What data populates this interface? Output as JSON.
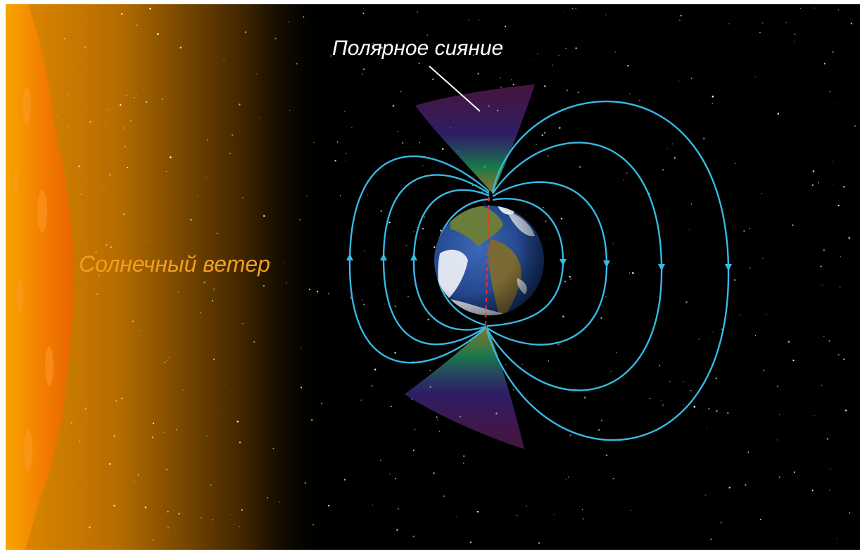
{
  "labels": {
    "aurora": "Полярное сияние",
    "solar_wind": "Солнечный ветер"
  },
  "colors": {
    "space": "#000000",
    "sun_core": "#f06a00",
    "sun_glow": "#d28200",
    "field_line": "#38b9e6",
    "solar_wind_text": "#f0a020",
    "aurora_text": "#ffffff",
    "ocean": "#1c3f8a",
    "land": "#6a7d3a",
    "axis": "#ff2a2a"
  },
  "icons": {
    "sun": "sun-edge-icon",
    "earth": "earth-globe-icon",
    "field": "magnetic-field-lines",
    "aurora": "aurora-cone"
  }
}
